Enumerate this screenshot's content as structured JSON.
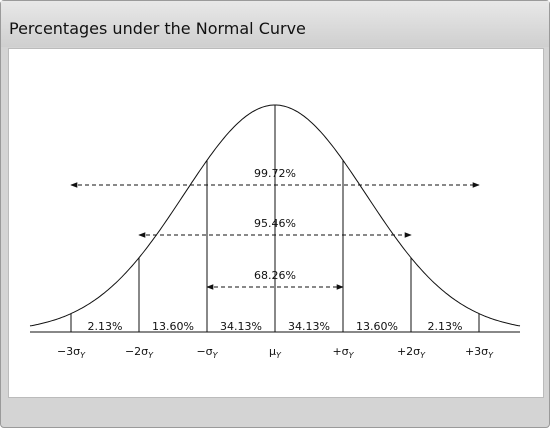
{
  "header": {
    "title": "Percentages under the Normal Curve"
  },
  "ranges": [
    {
      "label": "99.72%"
    },
    {
      "label": "95.46%"
    },
    {
      "label": "68.26%"
    }
  ],
  "segments": [
    "2.13%",
    "13.60%",
    "34.13%",
    "34.13%",
    "13.60%",
    "2.13%"
  ],
  "axis_labels": [
    {
      "main": "−3σ",
      "sub": "Y"
    },
    {
      "main": "−2σ",
      "sub": "Y"
    },
    {
      "main": "−σ",
      "sub": "Y"
    },
    {
      "main": "μ",
      "sub": "Y"
    },
    {
      "main": "+σ",
      "sub": "Y"
    },
    {
      "main": "+2σ",
      "sub": "Y"
    },
    {
      "main": "+3σ",
      "sub": "Y"
    }
  ]
}
